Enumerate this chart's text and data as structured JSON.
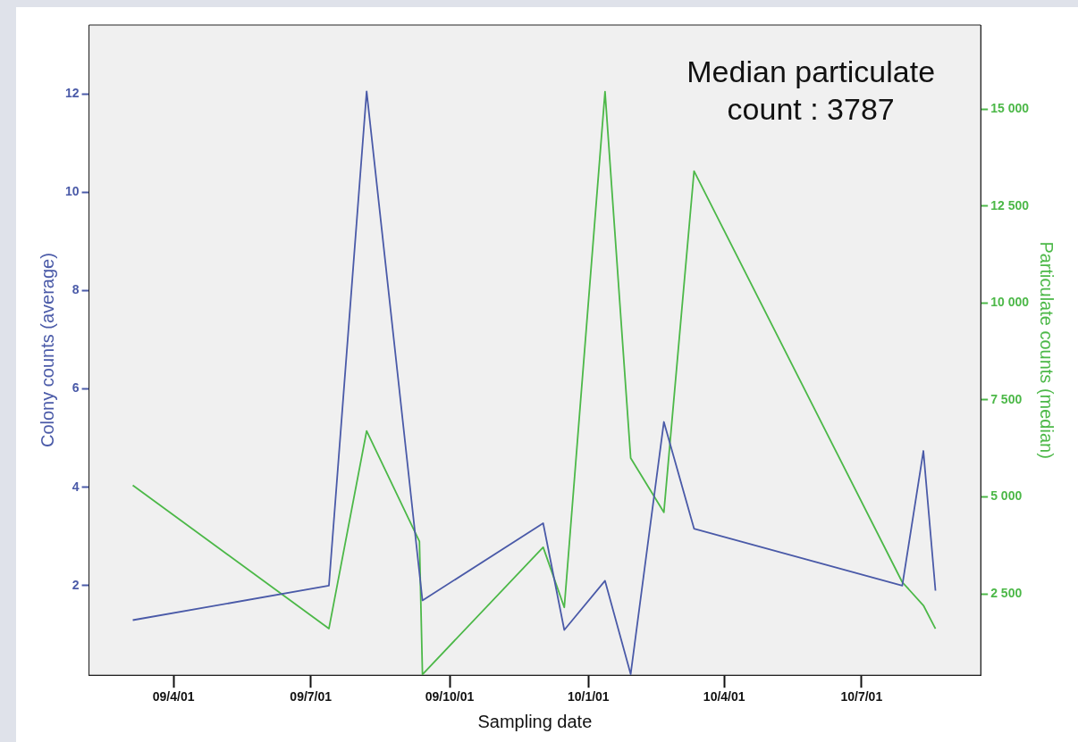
{
  "chart_data": {
    "type": "line",
    "xlabel": "Sampling date",
    "ylabel": "Colony counts (average)",
    "y2label": "Particulate counts (median)",
    "annotations": [
      "Median particulate count : 3787"
    ],
    "xlim": [
      "2009-02-04",
      "2010-09-18"
    ],
    "xticks": [
      {
        "value": "2009-04-01",
        "label": "09/4/01"
      },
      {
        "value": "2009-07-01",
        "label": "09/7/01"
      },
      {
        "value": "2009-10-01",
        "label": "09/10/01"
      },
      {
        "value": "2010-01-01",
        "label": "10/1/01"
      },
      {
        "value": "2010-04-01",
        "label": "10/4/01"
      },
      {
        "value": "2010-07-01",
        "label": "10/7/01"
      }
    ],
    "ylim": [
      0.18,
      13.4
    ],
    "yticks": [
      2,
      4,
      6,
      8,
      10,
      12
    ],
    "y2lim": [
      400,
      17170
    ],
    "y2ticks": [
      {
        "value": 2500,
        "label": "2 500"
      },
      {
        "value": 5000,
        "label": "5 000"
      },
      {
        "value": 7500,
        "label": "7 500"
      },
      {
        "value": 10000,
        "label": "10 000"
      },
      {
        "value": 12500,
        "label": "12 500"
      },
      {
        "value": 15000,
        "label": "15 000"
      }
    ],
    "grid": false,
    "legend": false,
    "marker": "none",
    "line_style": "solid",
    "series": [
      {
        "color": "#4a5aa8",
        "x": [
          "2009-03-05",
          "2009-07-13",
          "2009-08-07",
          "2009-09-13",
          "2009-12-02",
          "2009-12-16",
          "2010-01-12",
          "2010-01-29",
          "2010-02-20",
          "2010-03-12",
          "2010-07-28",
          "2010-08-11",
          "2010-08-19"
        ],
        "values": [
          1.3,
          2.0,
          12.05,
          1.7,
          3.27,
          1.1,
          2.1,
          0.2,
          5.33,
          3.16,
          2.0,
          4.74,
          1.9
        ]
      },
      {
        "color": "#4cb848",
        "axis": "y2",
        "x": [
          "2009-03-05",
          "2009-07-13",
          "2009-08-07",
          "2009-09-11",
          "2009-09-13",
          "2009-12-02",
          "2009-12-16",
          "2010-01-12",
          "2010-01-29",
          "2010-02-20",
          "2010-03-12",
          "2010-07-28",
          "2010-08-11",
          "2010-08-19"
        ],
        "values": [
          5300,
          1600,
          6700,
          3850,
          420,
          3700,
          2150,
          15450,
          6000,
          4600,
          13400,
          2800,
          2200,
          1600
        ]
      }
    ]
  }
}
